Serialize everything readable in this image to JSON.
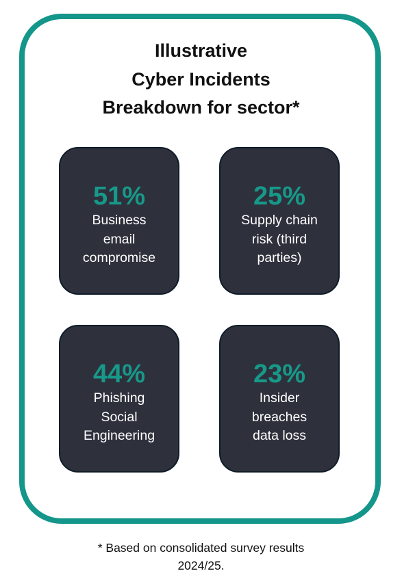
{
  "title": [
    "Illustrative",
    "Cyber Incidents",
    "Breakdown for sector*"
  ],
  "cards": [
    {
      "percent": "51%",
      "label": [
        "Business",
        "email",
        "compromise"
      ]
    },
    {
      "percent": "25%",
      "label": [
        "Supply chain",
        "risk (third",
        "parties)"
      ]
    },
    {
      "percent": "44%",
      "label": [
        "Phishing",
        "Social",
        "Engineering"
      ]
    },
    {
      "percent": "23%",
      "label": [
        "Insider",
        "breaches",
        "data loss"
      ]
    }
  ],
  "footnote": [
    "* Based on consolidated survey results",
    "2024/25."
  ]
}
